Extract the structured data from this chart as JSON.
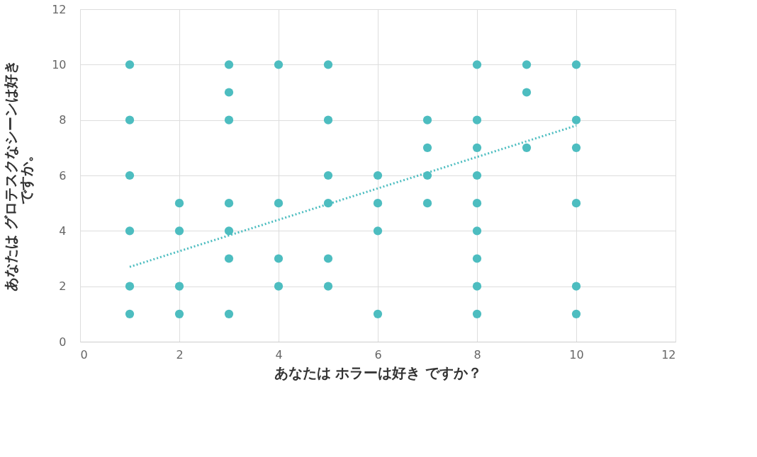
{
  "chart_data": {
    "type": "scatter",
    "xlabel": "あなたは ホラーは好き ですか？",
    "ylabel": "あなたは グロテスクなシーンは好きですか。",
    "xlim": [
      0,
      12
    ],
    "xticks": [
      0,
      2,
      4,
      6,
      8,
      10,
      12
    ],
    "ylim": [
      0,
      12
    ],
    "yticks": [
      0,
      2,
      4,
      6,
      8,
      10,
      12
    ],
    "grid": true,
    "legend": false,
    "marker": "circle",
    "series": [
      {
        "color": "#4dbdc0",
        "x": [
          1,
          1,
          1,
          1,
          1,
          1,
          2,
          2,
          2,
          2,
          3,
          3,
          3,
          3,
          3,
          3,
          3,
          4,
          4,
          4,
          4,
          5,
          5,
          5,
          5,
          5,
          5,
          6,
          6,
          6,
          6,
          7,
          7,
          7,
          7,
          8,
          8,
          8,
          8,
          8,
          8,
          8,
          8,
          8,
          9,
          9,
          9,
          10,
          10,
          10,
          10,
          10,
          10
        ],
        "values": [
          10,
          8,
          6,
          4,
          2,
          1,
          5,
          4,
          2,
          1,
          10,
          9,
          8,
          5,
          4,
          3,
          1,
          10,
          5,
          3,
          2,
          10,
          8,
          6,
          5,
          3,
          2,
          6,
          5,
          4,
          1,
          8,
          7,
          6,
          5,
          10,
          8,
          7,
          6,
          5,
          4,
          3,
          2,
          1,
          10,
          9,
          7,
          10,
          8,
          7,
          5,
          2,
          1
        ]
      },
      {
        "type": "line",
        "color": "#4dbdc0",
        "line_style": "dotted",
        "marker": "none",
        "x": [
          1,
          10
        ],
        "values": [
          2.7,
          7.8
        ]
      }
    ]
  }
}
